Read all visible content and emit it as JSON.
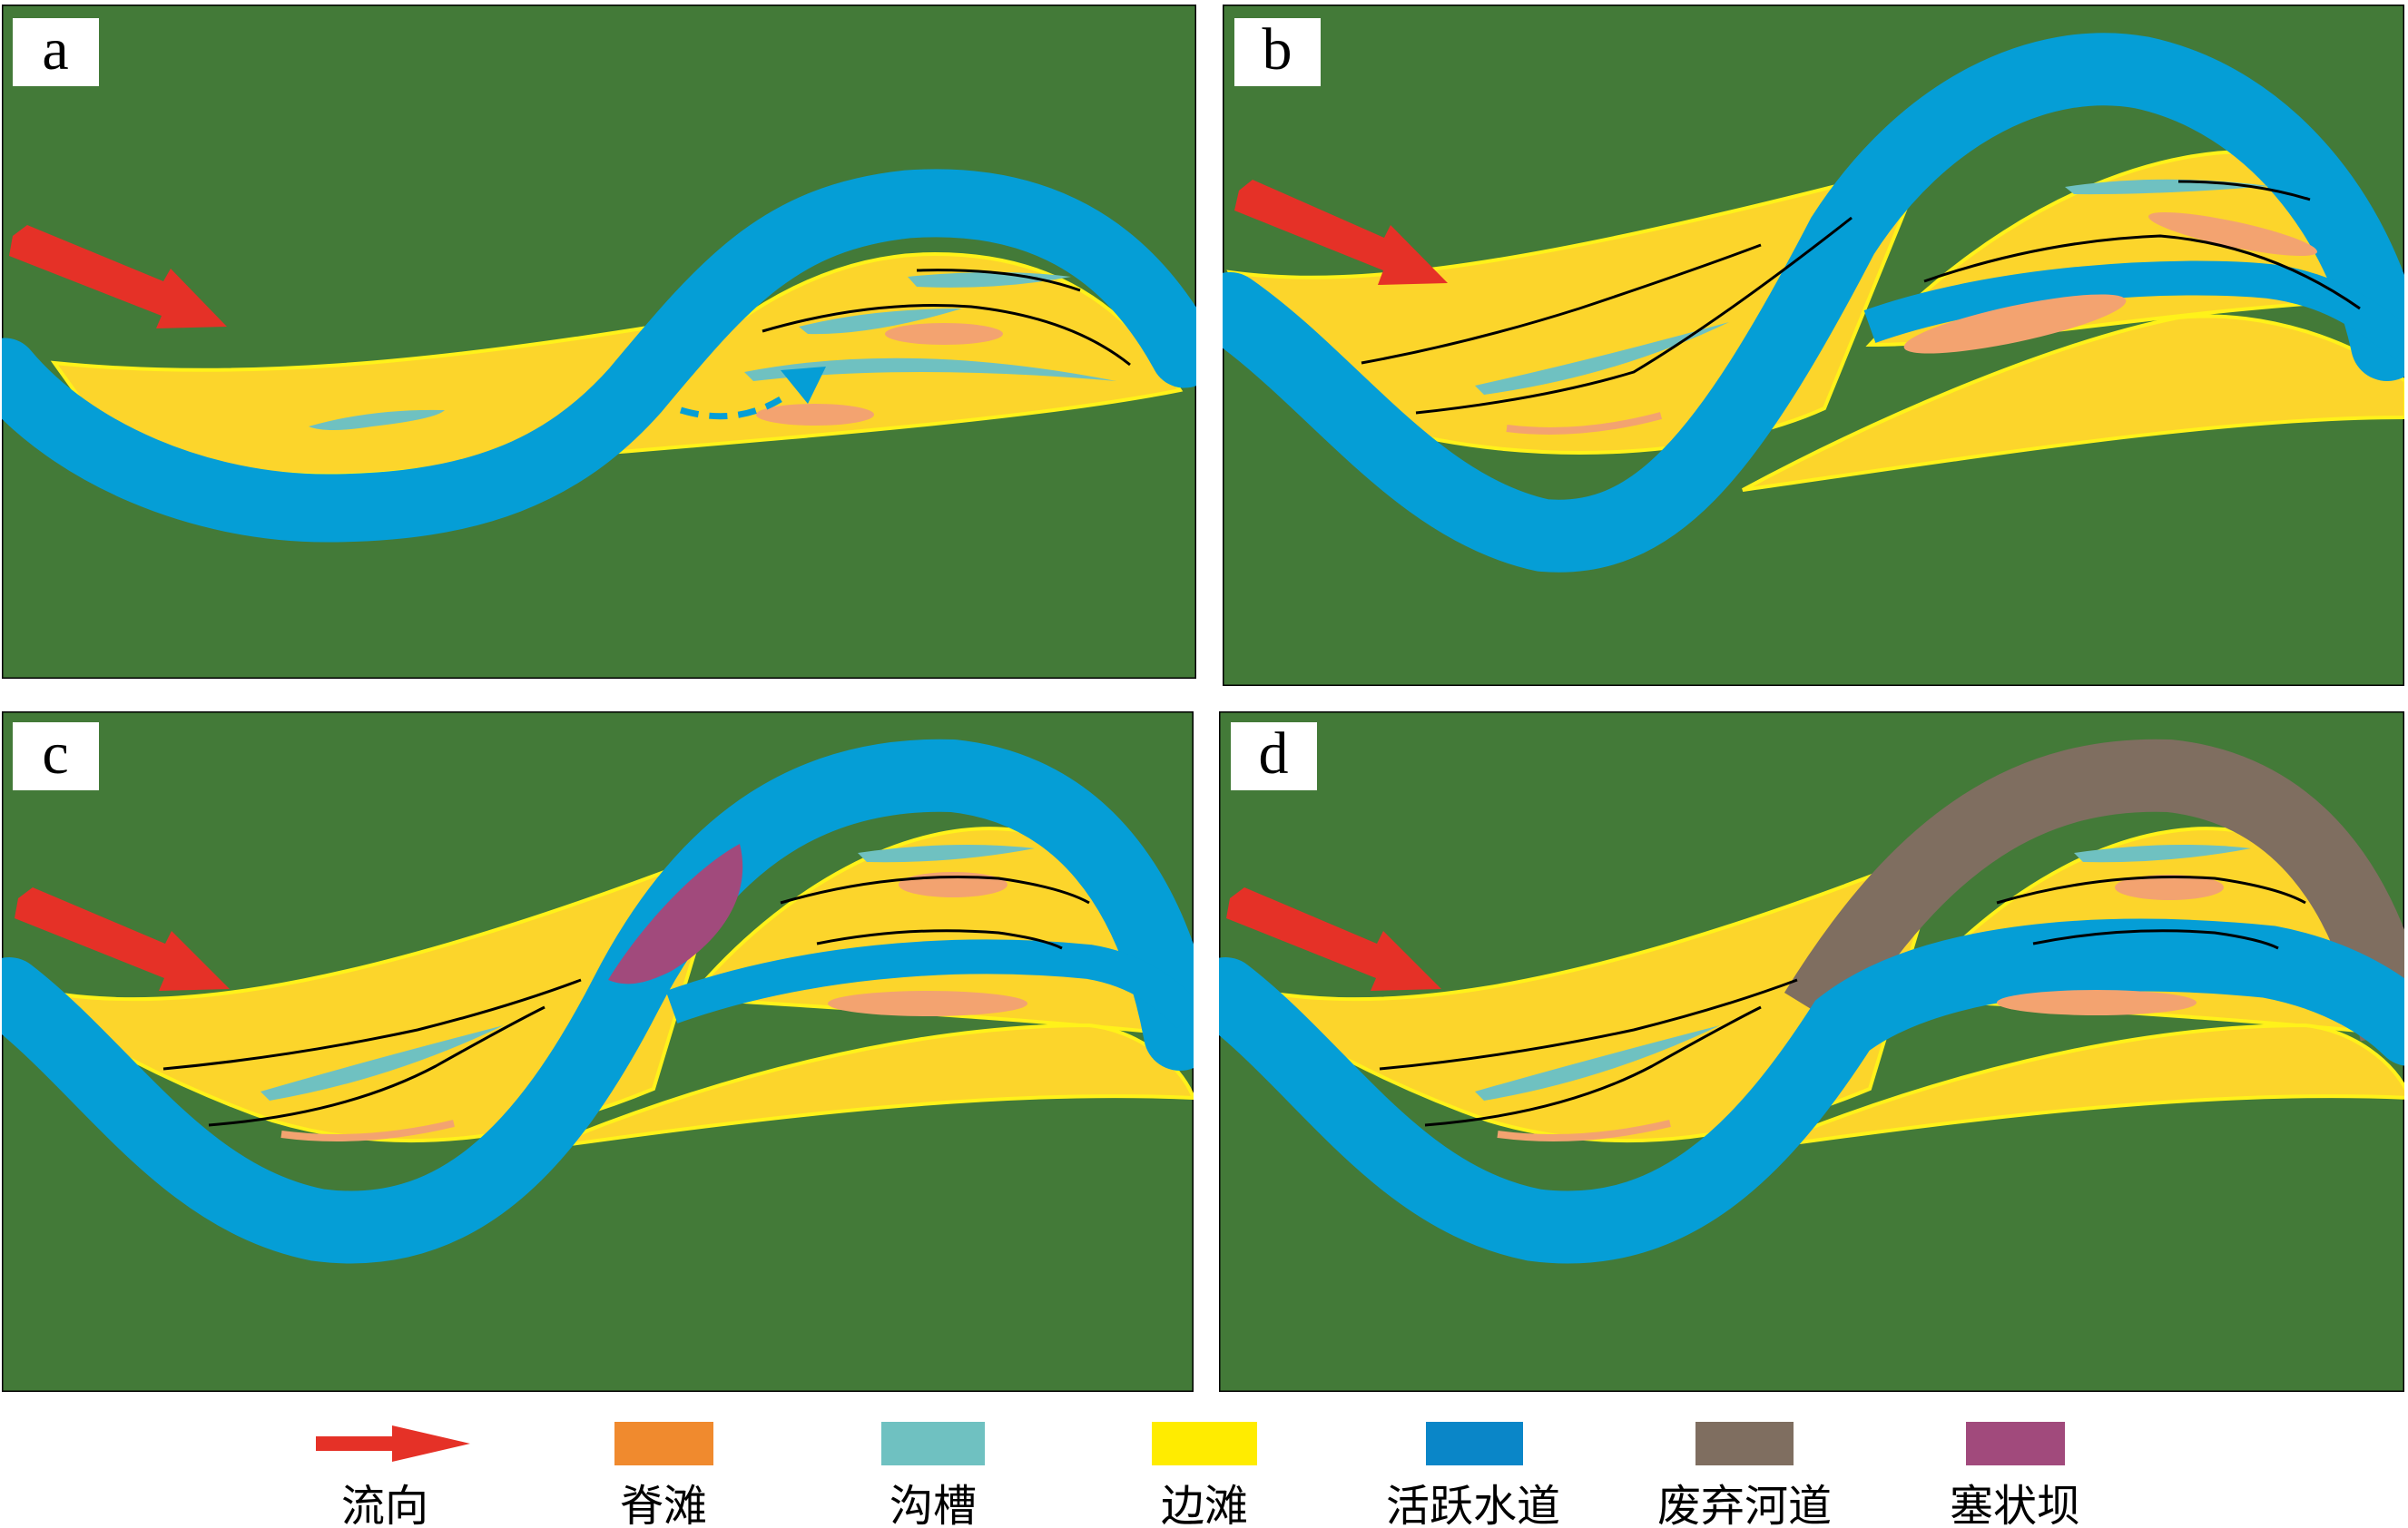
{
  "panels": [
    {
      "id": "a",
      "label": "a"
    },
    {
      "id": "b",
      "label": "b"
    },
    {
      "id": "c",
      "label": "c"
    },
    {
      "id": "d",
      "label": "d"
    }
  ],
  "legend": {
    "flow": {
      "label": "流向",
      "color": "#e53127"
    },
    "ridge_bar": {
      "label": "脊滩",
      "color": "#f08a2e"
    },
    "trough": {
      "label": "沟槽",
      "color": "#6fc1c1"
    },
    "side_bar": {
      "label": "边滩",
      "color": "#ffec00"
    },
    "active_channel": {
      "label": "活跃水道",
      "color": "#0a86c8"
    },
    "abandoned_channel": {
      "label": "废弃河道",
      "color": "#7f6e60"
    },
    "plug_bar": {
      "label": "塞状坝",
      "color": "#a14a7c"
    }
  },
  "colors": {
    "background": "#437a38",
    "bar_fill": "#fcd52b",
    "bar_edge": "#fff21a",
    "channel": "#059ed6",
    "trough_fill": "#6fc1c1",
    "ridge_fill": "#f3a370",
    "flow_arrow": "#e53127",
    "plug": "#a14a7c",
    "abandoned": "#7f6e60"
  }
}
